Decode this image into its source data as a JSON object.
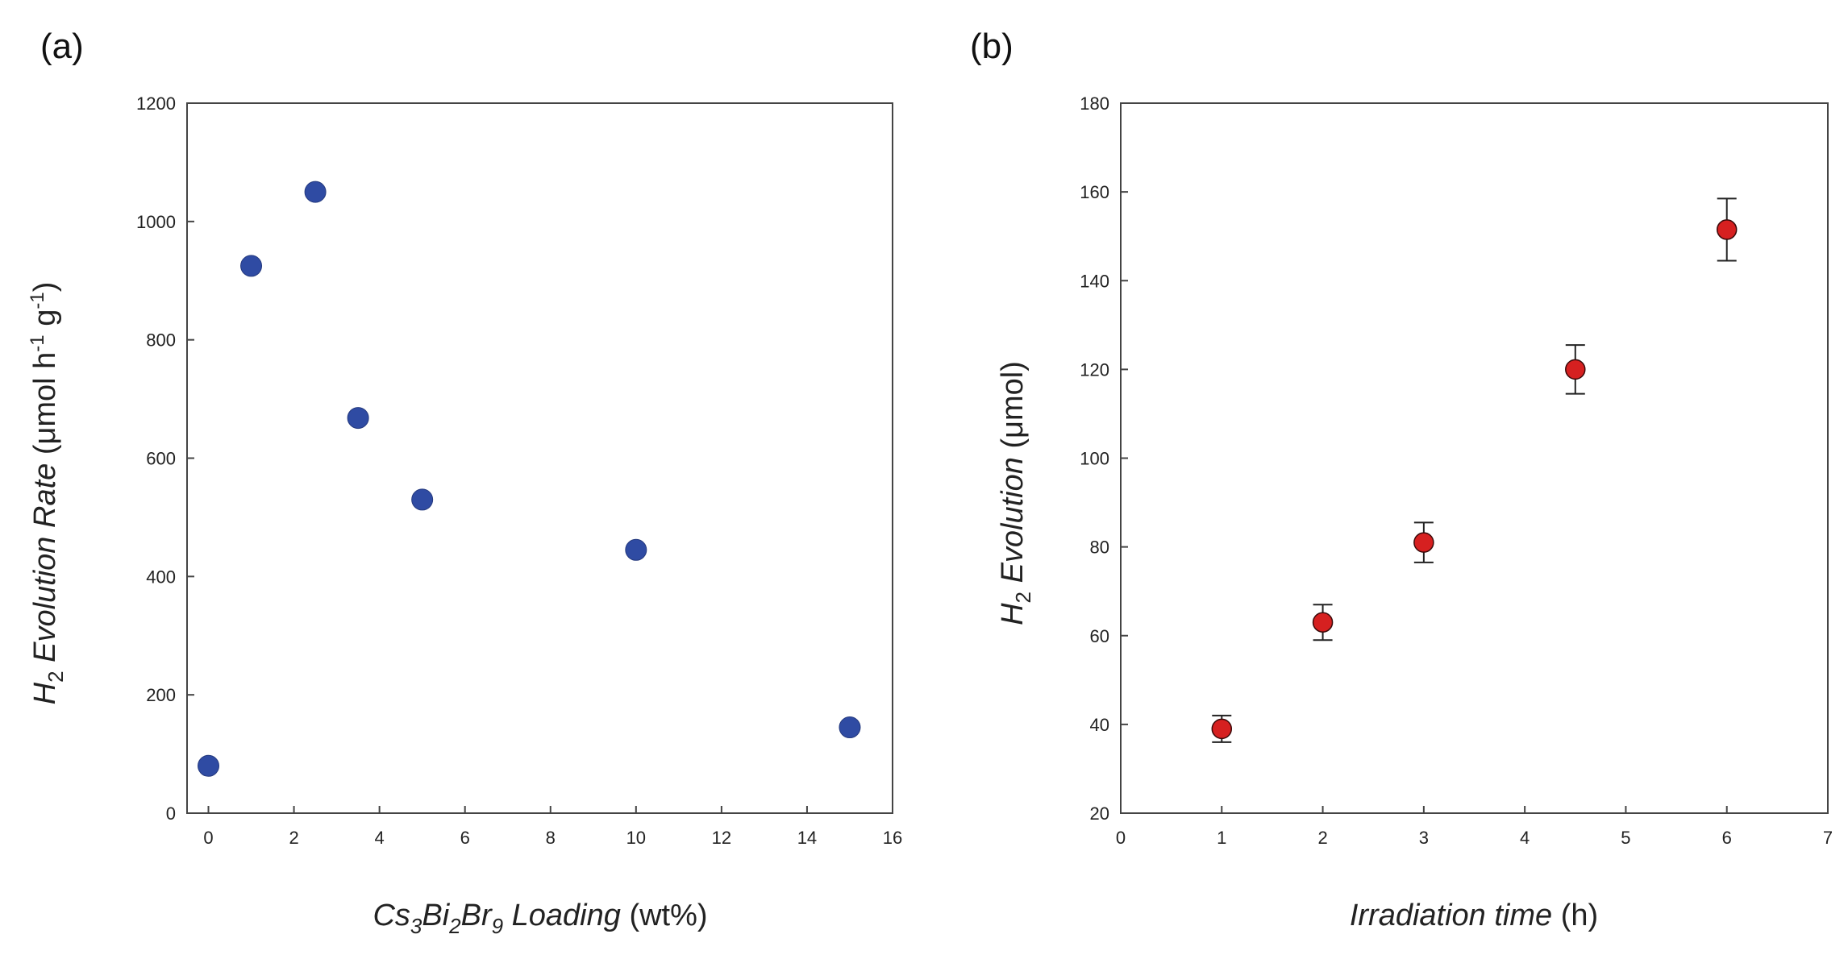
{
  "chart_data": [
    {
      "type": "scatter",
      "panel_label": "(a)",
      "title": "",
      "xlabel": {
        "prefix_italic": "Cs",
        "sub1": "3",
        "mid1": "Bi",
        "sub2": "2",
        "mid2": "Br",
        "sub3": "9",
        "mid3": " Loading",
        "suffix": " (wt%)"
      },
      "ylabel": {
        "prefix_italic": "H",
        "sub": "2",
        "italic_rest": " Evolution Rate",
        "unit_a": " (μmol h",
        "sup1": "-1",
        "unit_b": " g",
        "sup2": "-1",
        "unit_c": ")"
      },
      "xlim": [
        -0.5,
        16
      ],
      "ylim": [
        0,
        1200
      ],
      "xticks": [
        0,
        2,
        4,
        6,
        8,
        10,
        12,
        14,
        16
      ],
      "yticks": [
        0,
        200,
        400,
        600,
        800,
        1000,
        1200
      ],
      "marker_color": "#2f4ba3",
      "series": [
        {
          "name": "H2 evolution rate",
          "x": [
            0,
            1,
            2.5,
            3.5,
            5,
            10,
            15
          ],
          "y": [
            80,
            925,
            1050,
            668,
            530,
            445,
            145
          ]
        }
      ]
    },
    {
      "type": "scatter",
      "panel_label": "(b)",
      "title": "",
      "xlabel": {
        "italic": "Irradiation time",
        "suffix": " (h)"
      },
      "ylabel": {
        "prefix_italic": "H",
        "sub": "2",
        "italic_rest": " Evolution",
        "unit": " (μmol)"
      },
      "xlim": [
        0,
        7
      ],
      "ylim": [
        20,
        180
      ],
      "xticks": [
        0,
        1,
        2,
        3,
        4,
        5,
        6,
        7
      ],
      "yticks": [
        20,
        40,
        60,
        80,
        100,
        120,
        140,
        160,
        180
      ],
      "marker_color": "#d62020",
      "series": [
        {
          "name": "H2 evolution",
          "x": [
            1,
            2,
            3,
            4.5,
            6
          ],
          "y": [
            39,
            63,
            81,
            120,
            151.5
          ],
          "yerr": [
            3,
            4,
            4.5,
            5.5,
            7
          ]
        }
      ]
    }
  ]
}
